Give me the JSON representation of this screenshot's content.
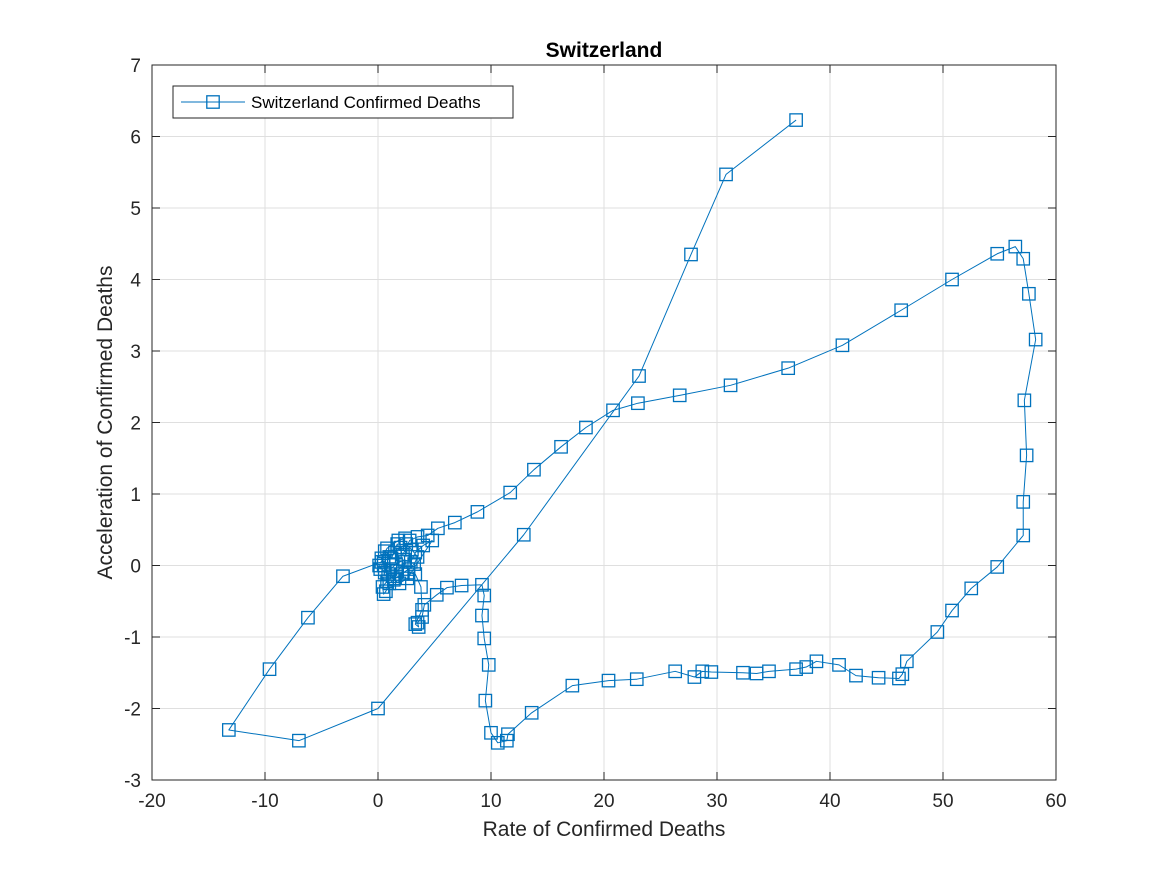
{
  "chart_data": {
    "type": "line",
    "title": "Switzerland",
    "xlabel": "Rate of Confirmed Deaths",
    "ylabel": "Acceleration of Confirmed Deaths",
    "xlim": [
      -20,
      60
    ],
    "ylim": [
      -3,
      7
    ],
    "xticks": [
      -20,
      -10,
      0,
      10,
      20,
      30,
      40,
      50,
      60
    ],
    "yticks": [
      -3,
      -2,
      -1,
      0,
      1,
      2,
      3,
      4,
      5,
      6,
      7
    ],
    "xtick_labels": [
      "-20",
      "-10",
      "0",
      "10",
      "20",
      "30",
      "40",
      "50",
      "60"
    ],
    "ytick_labels": [
      "-3",
      "-2",
      "-1",
      "0",
      "1",
      "2",
      "3",
      "4",
      "5",
      "6",
      "7"
    ],
    "grid": true,
    "legend_position": "top-left",
    "colors": {
      "series": "#0072bd",
      "grid": "#dfdfdf",
      "axis": "#262626"
    },
    "series": [
      {
        "name": "Switzerland Confirmed Deaths",
        "marker": "square",
        "points": [
          [
            37.0,
            6.23
          ],
          [
            30.8,
            5.47
          ],
          [
            27.7,
            4.35
          ],
          [
            23.1,
            2.65
          ],
          [
            12.9,
            0.43
          ],
          [
            0.0,
            -2.0
          ],
          [
            -7.0,
            -2.45
          ],
          [
            -13.2,
            -2.3
          ],
          [
            -9.6,
            -1.45
          ],
          [
            -6.2,
            -0.73
          ],
          [
            -3.1,
            -0.15
          ],
          [
            0.3,
            0.05
          ],
          [
            0.6,
            0.2
          ],
          [
            1.2,
            0.1
          ],
          [
            1.7,
            0.3
          ],
          [
            2.2,
            0.15
          ],
          [
            2.8,
            0.35
          ],
          [
            3.5,
            0.4
          ],
          [
            4.4,
            0.42
          ],
          [
            5.3,
            0.52
          ],
          [
            6.8,
            0.6
          ],
          [
            8.8,
            0.75
          ],
          [
            11.7,
            1.02
          ],
          [
            13.8,
            1.34
          ],
          [
            16.2,
            1.66
          ],
          [
            18.4,
            1.93
          ],
          [
            20.8,
            2.17
          ],
          [
            23.0,
            2.27
          ],
          [
            26.7,
            2.38
          ],
          [
            31.2,
            2.52
          ],
          [
            36.3,
            2.76
          ],
          [
            41.1,
            3.08
          ],
          [
            46.3,
            3.57
          ],
          [
            50.8,
            4.0
          ],
          [
            54.8,
            4.36
          ],
          [
            56.4,
            4.46
          ],
          [
            57.1,
            4.29
          ],
          [
            57.6,
            3.8
          ],
          [
            58.2,
            3.16
          ],
          [
            57.2,
            2.31
          ],
          [
            57.4,
            1.54
          ],
          [
            57.1,
            0.89
          ],
          [
            57.1,
            0.42
          ],
          [
            54.8,
            -0.02
          ],
          [
            52.5,
            -0.32
          ],
          [
            50.8,
            -0.63
          ],
          [
            49.5,
            -0.93
          ],
          [
            46.8,
            -1.34
          ],
          [
            46.4,
            -1.52
          ],
          [
            46.1,
            -1.58
          ],
          [
            44.3,
            -1.57
          ],
          [
            42.3,
            -1.54
          ],
          [
            40.8,
            -1.39
          ],
          [
            38.8,
            -1.34
          ],
          [
            37.9,
            -1.42
          ],
          [
            37.0,
            -1.45
          ],
          [
            34.6,
            -1.48
          ],
          [
            33.5,
            -1.51
          ],
          [
            32.3,
            -1.5
          ],
          [
            29.5,
            -1.49
          ],
          [
            28.7,
            -1.48
          ],
          [
            28.0,
            -1.56
          ],
          [
            26.3,
            -1.48
          ],
          [
            22.9,
            -1.59
          ],
          [
            20.4,
            -1.61
          ],
          [
            17.2,
            -1.68
          ],
          [
            13.6,
            -2.06
          ],
          [
            11.5,
            -2.36
          ],
          [
            11.4,
            -2.45
          ],
          [
            10.6,
            -2.48
          ],
          [
            10.0,
            -2.34
          ],
          [
            9.5,
            -1.89
          ],
          [
            9.8,
            -1.39
          ],
          [
            9.4,
            -1.02
          ],
          [
            9.2,
            -0.7
          ],
          [
            9.4,
            -0.42
          ],
          [
            9.2,
            -0.27
          ],
          [
            7.4,
            -0.28
          ],
          [
            6.1,
            -0.31
          ],
          [
            5.2,
            -0.41
          ],
          [
            4.1,
            -0.55
          ],
          [
            3.9,
            -0.72
          ],
          [
            3.5,
            -0.8
          ],
          [
            3.6,
            -0.86
          ],
          [
            3.3,
            -0.82
          ],
          [
            3.9,
            -0.62
          ],
          [
            3.8,
            -0.3
          ],
          [
            3.3,
            -0.12
          ],
          [
            2.7,
            -0.1
          ],
          [
            2.4,
            0.05
          ],
          [
            1.7,
            -0.08
          ],
          [
            1.3,
            -0.15
          ],
          [
            0.8,
            -0.22
          ],
          [
            0.4,
            -0.3
          ],
          [
            0.5,
            -0.4
          ],
          [
            0.7,
            -0.36
          ],
          [
            1.0,
            -0.25
          ],
          [
            1.5,
            -0.18
          ],
          [
            2.1,
            -0.12
          ],
          [
            2.7,
            -0.05
          ],
          [
            3.2,
            0.02
          ],
          [
            3.5,
            0.12
          ],
          [
            3.0,
            0.22
          ],
          [
            2.5,
            0.3
          ],
          [
            2.0,
            0.25
          ],
          [
            1.5,
            0.18
          ],
          [
            1.0,
            0.12
          ],
          [
            0.5,
            0.05
          ],
          [
            0.2,
            -0.05
          ],
          [
            0.1,
            0.0
          ],
          [
            0.6,
            -0.1
          ],
          [
            1.1,
            -0.05
          ],
          [
            1.6,
            0.02
          ],
          [
            2.3,
            0.08
          ],
          [
            2.9,
            0.05
          ],
          [
            3.3,
            0.18
          ],
          [
            4.0,
            0.28
          ],
          [
            4.8,
            0.35
          ],
          [
            2.6,
            -0.18
          ],
          [
            1.9,
            -0.25
          ],
          [
            1.4,
            -0.2
          ],
          [
            0.9,
            -0.12
          ],
          [
            0.5,
            0.0
          ],
          [
            0.3,
            0.1
          ],
          [
            0.8,
            0.24
          ],
          [
            1.8,
            0.35
          ],
          [
            2.4,
            0.38
          ]
        ]
      }
    ]
  }
}
